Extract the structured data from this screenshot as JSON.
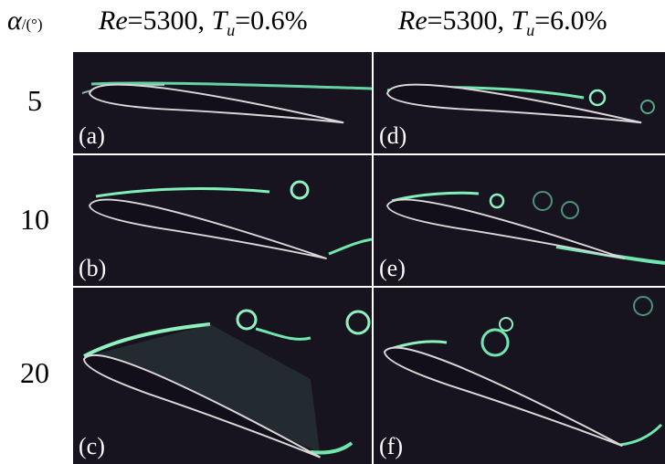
{
  "header": {
    "axis_symbol": "α",
    "axis_unit": "/(°)",
    "columns": [
      {
        "re_symbol": "Re",
        "re_value": "=5300,",
        "tu_symbol": "T",
        "tu_subscript": "u",
        "tu_value": "=0.6%"
      },
      {
        "re_symbol": "Re",
        "re_value": "=5300,",
        "tu_symbol": "T",
        "tu_subscript": "u",
        "tu_value": "=6.0%"
      }
    ]
  },
  "rows": [
    {
      "angle": "5",
      "panels": [
        "(a)",
        "(d)"
      ]
    },
    {
      "angle": "10",
      "panels": [
        "(b)",
        "(e)"
      ]
    },
    {
      "angle": "20",
      "panels": [
        "(c)",
        "(f)"
      ]
    }
  ]
}
